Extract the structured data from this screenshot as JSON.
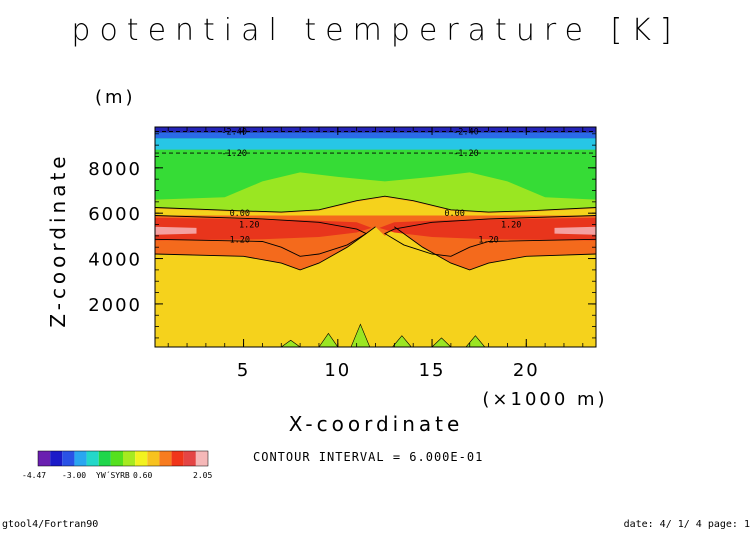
{
  "chart_data": {
    "type": "heatmap",
    "title": "potential temperature [K]",
    "xlabel": "X-coordinate",
    "x_unit": "(×1000 m)",
    "ylabel": "Z-coordinate",
    "y_unit": "(m)",
    "xlim": [
      0.3,
      23.7
    ],
    "ylim": [
      100,
      9800
    ],
    "x_ticks": [
      5,
      10,
      15,
      20
    ],
    "y_ticks": [
      2000,
      4000,
      6000,
      8000
    ],
    "contour_labels": [
      {
        "text": "-2.40",
        "x": 4.5,
        "y": 9600
      },
      {
        "text": "-2.40",
        "x": 16.8,
        "y": 9600
      },
      {
        "text": "-1.20",
        "x": 4.5,
        "y": 8650
      },
      {
        "text": "-1.20",
        "x": 16.8,
        "y": 8650
      },
      {
        "text": "0.00",
        "x": 4.8,
        "y": 6000
      },
      {
        "text": "0.00",
        "x": 16.2,
        "y": 6000
      },
      {
        "text": "1.20",
        "x": 5.3,
        "y": 5500
      },
      {
        "text": "1.20",
        "x": 19.2,
        "y": 5500
      },
      {
        "text": "1.20",
        "x": 4.8,
        "y": 4850
      },
      {
        "text": "1.20",
        "x": 18.0,
        "y": 4850
      }
    ],
    "contour_interval_text": "CONTOUR INTERVAL = 6.000E-01",
    "colorbar": {
      "colors": [
        "#6a1fb0",
        "#1b1bc8",
        "#2a52e6",
        "#2aa6f0",
        "#23d7c9",
        "#1fd64b",
        "#55e01f",
        "#a6ea21",
        "#f2f21f",
        "#f7c21f",
        "#f77c1f",
        "#f0351a",
        "#e44545",
        "#f5b8b8"
      ],
      "tick_labels": [
        "-4.47",
        "-3.00",
        "YW´SYRB",
        "0.60",
        "2.05"
      ]
    },
    "fill_colors": {
      "band_top_dark": "#2424b8",
      "band_top_blue": "#2a6ae8",
      "band_top_cyan": "#27c6e6",
      "green": "#36dc36",
      "light_green": "#9ae622",
      "yellow": "#f5d21c",
      "orange": "#f7a81c",
      "orange_red": "#f46a1c",
      "red": "#e8351c",
      "pink": "#f4a0a0"
    }
  },
  "footer": {
    "left": "gtool4/Fortran90",
    "right": "date: 4/ 1/ 4 page: 1"
  }
}
